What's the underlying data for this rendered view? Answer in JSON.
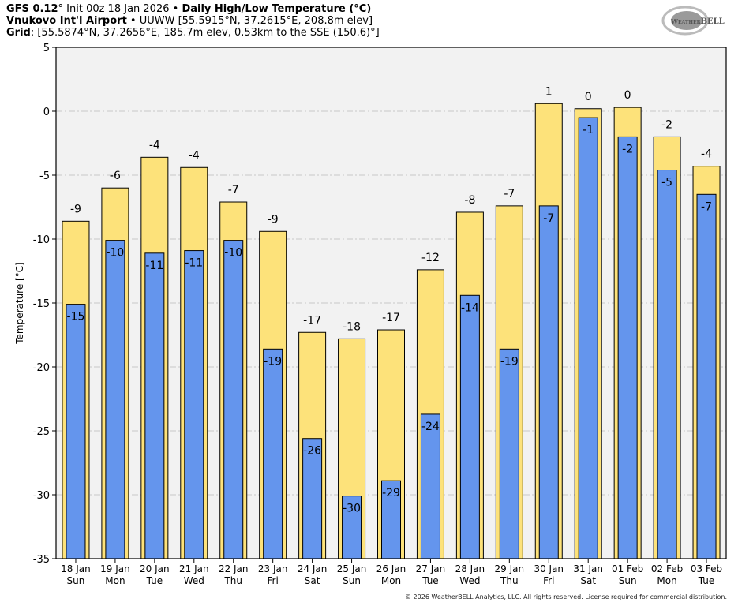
{
  "header": {
    "line1_model": "GFS 0.12",
    "line1_deg": "°",
    "line1_init": " Init 00z 18 Jan 2026 • ",
    "line1_title": "Daily High/Low Temperature (°C)",
    "line2_station": "Vnukovo Int'l Airport",
    "line2_rest": " • UUWW [55.5915°N, 37.2615°E, 208.8m elev]",
    "line3_label": "Grid",
    "line3_rest": ": [55.5874°N, 37.2656°E, 185.7m elev, 0.53km to the SSE (150.6)°]"
  },
  "logo_text": "WeatherBELL Analytics LLC",
  "copyright": "© 2026 WeatherBELL Analytics, LLC. All rights reserved. License required for commercial distribution.",
  "colors": {
    "high": "#fde27a",
    "low": "#6495ed",
    "plot_bg": "#f2f2f2",
    "grid": "#c8c8c8"
  },
  "chart_data": {
    "type": "bar",
    "title": "Daily High/Low Temperature (°C)",
    "ylabel": "Temperature [°C]",
    "ylim": [
      -35,
      5
    ],
    "yticks": [
      5,
      0,
      -5,
      -10,
      -15,
      -20,
      -25,
      -30,
      -35
    ],
    "grid": true,
    "categories": [
      "18 Jan",
      "19 Jan",
      "20 Jan",
      "21 Jan",
      "22 Jan",
      "23 Jan",
      "24 Jan",
      "25 Jan",
      "26 Jan",
      "27 Jan",
      "28 Jan",
      "29 Jan",
      "30 Jan",
      "31 Jan",
      "01 Feb",
      "02 Feb",
      "03 Feb"
    ],
    "weekdays": [
      "Sun",
      "Mon",
      "Tue",
      "Wed",
      "Thu",
      "Fri",
      "Sat",
      "Sun",
      "Mon",
      "Tue",
      "Wed",
      "Thu",
      "Fri",
      "Sat",
      "Sun",
      "Mon",
      "Tue"
    ],
    "series": [
      {
        "key": "high",
        "values": [
          -8.6,
          -6.0,
          -3.6,
          -4.4,
          -7.1,
          -9.4,
          -17.3,
          -17.8,
          -17.1,
          -12.4,
          -7.9,
          -7.4,
          0.6,
          0.2,
          0.3,
          -2.0,
          -4.3
        ],
        "labels": [
          "-9",
          "-6",
          "-4",
          "-4",
          "-7",
          "-9",
          "-17",
          "-18",
          "-17",
          "-12",
          "-8",
          "-7",
          "1",
          "0",
          "0",
          "-2",
          "-4"
        ]
      },
      {
        "key": "low",
        "values": [
          -15.1,
          -10.1,
          -11.1,
          -10.9,
          -10.1,
          -18.6,
          -25.6,
          -30.1,
          -28.9,
          -23.7,
          -14.4,
          -18.6,
          -7.4,
          -0.5,
          -2.0,
          -4.6,
          -6.5
        ],
        "labels": [
          "-15",
          "-10",
          "-11",
          "-11",
          "-10",
          "-19",
          "-26",
          "-30",
          "-29",
          "-24",
          "-14",
          "-19",
          "-7",
          "-1",
          "-2",
          "-5",
          "-7"
        ]
      }
    ]
  }
}
